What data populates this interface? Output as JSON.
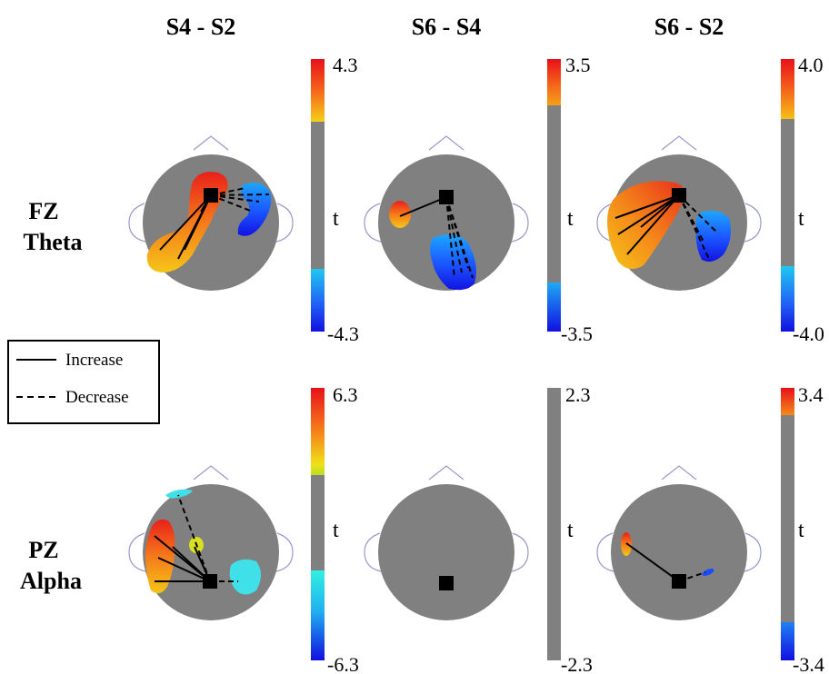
{
  "columns": [
    "S4 - S2",
    "S6 - S4",
    "S6 - S2"
  ],
  "rows": [
    {
      "line1": "FZ",
      "line2": "Theta"
    },
    {
      "line1": "PZ",
      "line2": "Alpha"
    }
  ],
  "legend": {
    "increase": "Increase",
    "decrease": "Decrease"
  },
  "colorbar_label": "t",
  "panels": [
    {
      "max": "4.3",
      "min": "-4.3"
    },
    {
      "max": "3.5",
      "min": "-3.5"
    },
    {
      "max": "4.0",
      "min": "-4.0"
    },
    {
      "max": "6.3",
      "min": "-6.3"
    },
    {
      "max": "2.3",
      "min": "-2.3"
    },
    {
      "max": "3.4",
      "min": "-3.4"
    }
  ],
  "colors": {
    "head": "#808080",
    "outline": "#9999cc",
    "seed": "#000000",
    "neutral": "#808080"
  }
}
